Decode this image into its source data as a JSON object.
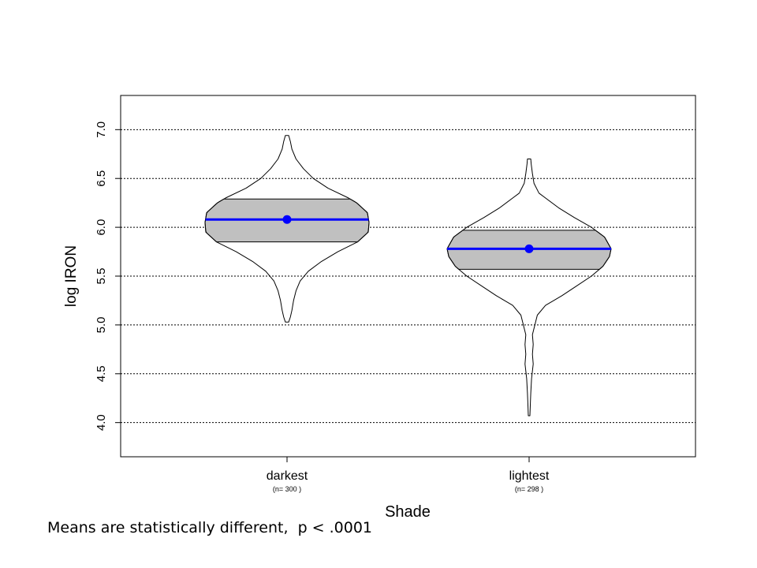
{
  "chart_data": {
    "type": "violin",
    "xlabel": "Shade",
    "ylabel": "log IRON",
    "ylim": [
      3.65,
      7.35
    ],
    "yticks": [
      4.0,
      4.5,
      5.0,
      5.5,
      6.0,
      6.5,
      7.0
    ],
    "ytick_labels": [
      "4.0",
      "4.5",
      "5.0",
      "5.5",
      "6.0",
      "6.5",
      "7.0"
    ],
    "grid": "horizontal-dotted",
    "categories": [
      "darkest",
      "lightest"
    ],
    "counts": [
      "(n= 300 )",
      "(n= 298 )"
    ],
    "series": [
      {
        "category": "darkest",
        "mean": 6.08,
        "band": [
          5.85,
          6.29
        ],
        "range": [
          5.03,
          6.94
        ],
        "density": [
          [
            5.03,
            0.02
          ],
          [
            5.08,
            0.04
          ],
          [
            5.15,
            0.06
          ],
          [
            5.25,
            0.08
          ],
          [
            5.35,
            0.11
          ],
          [
            5.45,
            0.16
          ],
          [
            5.55,
            0.26
          ],
          [
            5.65,
            0.42
          ],
          [
            5.75,
            0.62
          ],
          [
            5.85,
            0.86
          ],
          [
            5.95,
            0.99
          ],
          [
            6.05,
            1.0
          ],
          [
            6.15,
            0.98
          ],
          [
            6.25,
            0.85
          ],
          [
            6.3,
            0.75
          ],
          [
            6.4,
            0.5
          ],
          [
            6.5,
            0.32
          ],
          [
            6.6,
            0.2
          ],
          [
            6.7,
            0.11
          ],
          [
            6.8,
            0.06
          ],
          [
            6.88,
            0.04
          ],
          [
            6.94,
            0.02
          ]
        ]
      },
      {
        "category": "lightest",
        "mean": 5.78,
        "band": [
          5.57,
          5.97
        ],
        "range": [
          4.07,
          6.7
        ],
        "density": [
          [
            4.07,
            0.01
          ],
          [
            4.2,
            0.015
          ],
          [
            4.3,
            0.02
          ],
          [
            4.45,
            0.03
          ],
          [
            4.6,
            0.05
          ],
          [
            4.7,
            0.04
          ],
          [
            4.8,
            0.05
          ],
          [
            4.9,
            0.04
          ],
          [
            5.0,
            0.07
          ],
          [
            5.1,
            0.1
          ],
          [
            5.2,
            0.2
          ],
          [
            5.3,
            0.4
          ],
          [
            5.4,
            0.58
          ],
          [
            5.5,
            0.76
          ],
          [
            5.6,
            0.9
          ],
          [
            5.7,
            0.98
          ],
          [
            5.78,
            1.0
          ],
          [
            5.9,
            0.92
          ],
          [
            6.0,
            0.76
          ],
          [
            6.1,
            0.55
          ],
          [
            6.2,
            0.36
          ],
          [
            6.3,
            0.2
          ],
          [
            6.35,
            0.12
          ],
          [
            6.45,
            0.06
          ],
          [
            6.55,
            0.04
          ],
          [
            6.65,
            0.025
          ],
          [
            6.7,
            0.02
          ]
        ]
      }
    ],
    "colors": {
      "mean_line": "#0000ff",
      "band_fill": "#c0c0c0",
      "grid": "#000000"
    }
  },
  "caption": "Means are statistically different,  p < .0001"
}
